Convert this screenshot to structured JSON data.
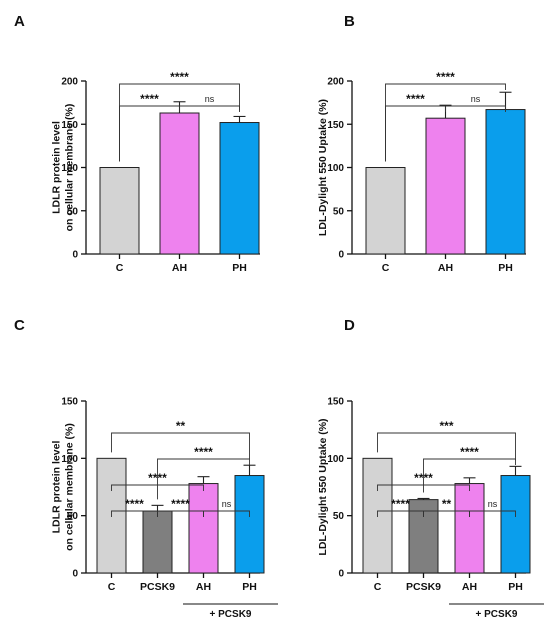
{
  "chart_data": [
    {
      "type": "bar",
      "panel": "A",
      "categories": [
        "C",
        "AH",
        "PH"
      ],
      "values": [
        100,
        163,
        152
      ],
      "errors": [
        0,
        13,
        7
      ],
      "colors": [
        "#d3d3d3",
        "#ee82ee",
        "#0a9eec"
      ],
      "ylabel": [
        "LDLR protein level",
        "on cellular membrane (%)"
      ],
      "ylim": [
        0,
        200
      ],
      "yticks": [
        0,
        50,
        100,
        150,
        200
      ],
      "comparisons": [
        {
          "from": 0,
          "to": 1,
          "label": "****",
          "level": 0
        },
        {
          "from": 1,
          "to": 2,
          "label": "ns",
          "level": 0
        },
        {
          "from": 0,
          "to": 2,
          "label": "****",
          "level": 1
        }
      ]
    },
    {
      "type": "bar",
      "panel": "B",
      "categories": [
        "C",
        "AH",
        "PH"
      ],
      "values": [
        100,
        157,
        167
      ],
      "errors": [
        0,
        15,
        20
      ],
      "colors": [
        "#d3d3d3",
        "#ee82ee",
        "#0a9eec"
      ],
      "ylabel": [
        "LDL-Dylight 550 Uptake (%)"
      ],
      "ylim": [
        0,
        200
      ],
      "yticks": [
        0,
        50,
        100,
        150,
        200
      ],
      "comparisons": [
        {
          "from": 0,
          "to": 1,
          "label": "****",
          "level": 0
        },
        {
          "from": 1,
          "to": 2,
          "label": "ns",
          "level": 0
        },
        {
          "from": 0,
          "to": 2,
          "label": "****",
          "level": 1
        }
      ]
    },
    {
      "type": "bar",
      "panel": "C",
      "categories": [
        "C",
        "PCSK9",
        "AH",
        "PH"
      ],
      "values": [
        100,
        54,
        78,
        85
      ],
      "errors": [
        0,
        5,
        6,
        9
      ],
      "colors": [
        "#d3d3d3",
        "#7f7f7f",
        "#ee82ee",
        "#0a9eec"
      ],
      "ylabel": [
        "LDLR protein level",
        "on cellular membrane (%)"
      ],
      "ylim": [
        0,
        150
      ],
      "yticks": [
        0,
        50,
        100,
        150
      ],
      "group_label": "+ PCSK9",
      "group_range": [
        2,
        3
      ],
      "comparisons": [
        {
          "from": 0,
          "to": 1,
          "label": "****",
          "level": 0
        },
        {
          "from": 1,
          "to": 2,
          "label": "****",
          "level": 0
        },
        {
          "from": 2,
          "to": 3,
          "label": "ns",
          "level": 0
        },
        {
          "from": 0,
          "to": 2,
          "label": "****",
          "level": 1
        },
        {
          "from": 1,
          "to": 3,
          "label": "****",
          "level": 2
        },
        {
          "from": 0,
          "to": 3,
          "label": "**",
          "level": 3
        }
      ]
    },
    {
      "type": "bar",
      "panel": "D",
      "categories": [
        "C",
        "PCSK9",
        "AH",
        "PH"
      ],
      "values": [
        100,
        64,
        78,
        85
      ],
      "errors": [
        0,
        1,
        5,
        8
      ],
      "colors": [
        "#d3d3d3",
        "#7f7f7f",
        "#ee82ee",
        "#0a9eec"
      ],
      "ylabel": [
        "LDL-Dylight 550 Uptake (%)"
      ],
      "ylim": [
        0,
        150
      ],
      "yticks": [
        0,
        50,
        100,
        150
      ],
      "group_label": "+ PCSK9",
      "group_range": [
        2,
        3
      ],
      "comparisons": [
        {
          "from": 0,
          "to": 1,
          "label": "****",
          "level": 0
        },
        {
          "from": 1,
          "to": 2,
          "label": "**",
          "level": 0
        },
        {
          "from": 2,
          "to": 3,
          "label": "ns",
          "level": 0
        },
        {
          "from": 0,
          "to": 2,
          "label": "****",
          "level": 1
        },
        {
          "from": 1,
          "to": 3,
          "label": "****",
          "level": 2
        },
        {
          "from": 0,
          "to": 3,
          "label": "***",
          "level": 3
        }
      ]
    }
  ]
}
